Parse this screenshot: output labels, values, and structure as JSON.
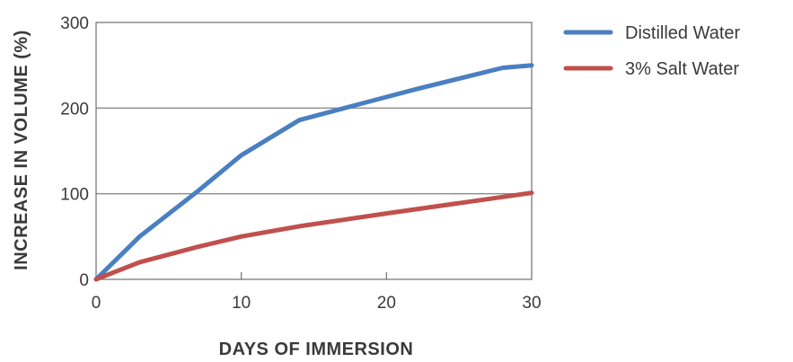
{
  "chart_data": {
    "type": "line",
    "xlabel": "DAYS OF IMMERSION",
    "ylabel": "INCREASE IN VOLUME (%)",
    "xlim": [
      0,
      30
    ],
    "ylim": [
      0,
      300
    ],
    "x_ticks": [
      0,
      10,
      20,
      30
    ],
    "y_ticks": [
      0,
      100,
      200,
      300
    ],
    "grid": "horizontal",
    "legend_position": "right",
    "series": [
      {
        "name": "Distilled Water",
        "color": "#4a7fc1",
        "x": [
          0,
          3,
          7,
          10,
          14,
          18,
          22,
          28,
          30
        ],
        "y": [
          0,
          50,
          103,
          145,
          186,
          204,
          222,
          247,
          250
        ]
      },
      {
        "name": "3% Salt Water",
        "color": "#c0504d",
        "x": [
          0,
          3,
          7,
          10,
          14,
          20,
          30
        ],
        "y": [
          0,
          20,
          38,
          50,
          62,
          77,
          101
        ]
      }
    ]
  }
}
